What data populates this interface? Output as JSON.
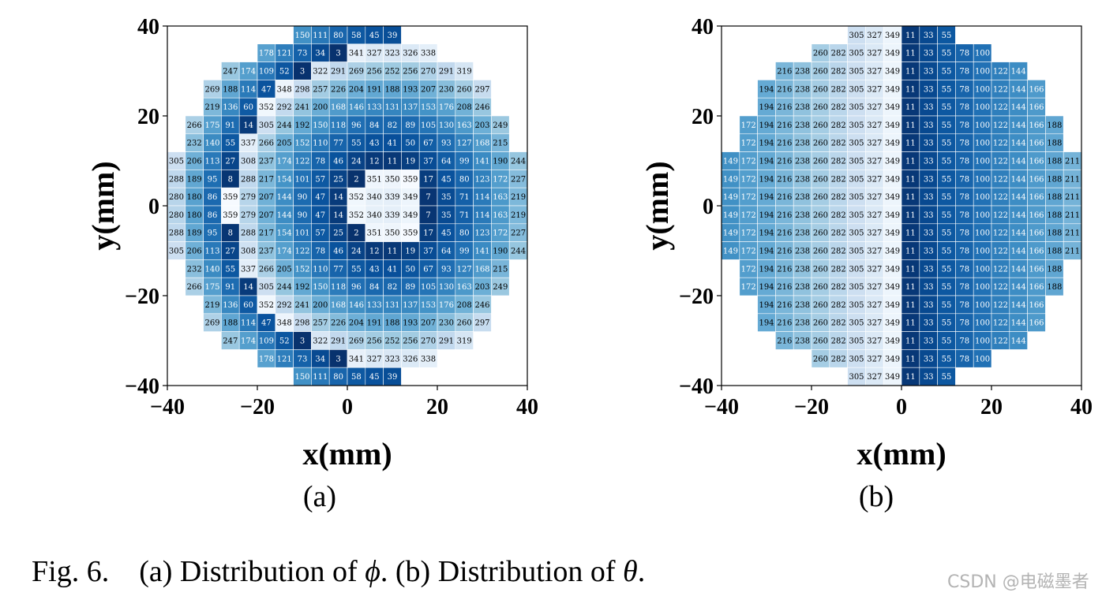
{
  "chart_data": [
    {
      "type": "heatmap",
      "panel": "(a)",
      "xlabel": "x(mm)",
      "ylabel": "y(mm)",
      "xlim": [
        -40,
        40
      ],
      "ylim": [
        -40,
        40
      ],
      "xticks": [
        "−40",
        "−20",
        "0",
        "20",
        "40"
      ],
      "yticks": [
        "40",
        "20",
        "0",
        "−20",
        "−40"
      ],
      "cell_size_mm": 4,
      "cmap": "Blues",
      "color_range": [
        0,
        360
      ],
      "rows": [
        {
          "y": 38,
          "x_start": -12,
          "values": [
            150,
            111,
            80,
            58,
            45,
            39
          ]
        },
        {
          "y": 34,
          "x_start": -20,
          "values": [
            178,
            121,
            73,
            34,
            3,
            341,
            327,
            323,
            326,
            338
          ]
        },
        {
          "y": 30,
          "x_start": -28,
          "values": [
            247,
            174,
            109,
            52,
            3,
            322,
            291,
            269,
            256,
            252,
            256,
            270,
            291,
            319
          ]
        },
        {
          "y": 26,
          "x_start": -32,
          "values": [
            269,
            188,
            114,
            47,
            348,
            298,
            257,
            226,
            204,
            191,
            188,
            193,
            207,
            230,
            260,
            297
          ]
        },
        {
          "y": 22,
          "x_start": -32,
          "values": [
            219,
            136,
            60,
            352,
            292,
            241,
            200,
            168,
            146,
            133,
            131,
            137,
            153,
            176,
            208,
            246
          ]
        },
        {
          "y": 18,
          "x_start": -36,
          "values": [
            266,
            175,
            91,
            14,
            305,
            244,
            192,
            150,
            118,
            96,
            84,
            82,
            89,
            105,
            130,
            163,
            203,
            249
          ]
        },
        {
          "y": 14,
          "x_start": -36,
          "values": [
            232,
            140,
            55,
            337,
            266,
            205,
            152,
            110,
            77,
            55,
            43,
            41,
            50,
            67,
            93,
            127,
            168,
            215
          ]
        },
        {
          "y": 10,
          "x_start": -40,
          "values": [
            305,
            206,
            113,
            27,
            308,
            237,
            174,
            122,
            78,
            46,
            24,
            12,
            11,
            19,
            37,
            64,
            99,
            141,
            190,
            244
          ]
        },
        {
          "y": 6,
          "x_start": -40,
          "values": [
            288,
            189,
            95,
            8,
            288,
            217,
            154,
            101,
            57,
            25,
            2,
            351,
            350,
            359,
            17,
            45,
            80,
            123,
            172,
            227
          ]
        },
        {
          "y": 2,
          "x_start": -40,
          "values": [
            280,
            180,
            86,
            359,
            279,
            207,
            144,
            90,
            47,
            14,
            352,
            340,
            339,
            349,
            7,
            35,
            71,
            114,
            163,
            219
          ]
        },
        {
          "y": -2,
          "x_start": -40,
          "values": [
            280,
            180,
            86,
            359,
            279,
            207,
            144,
            90,
            47,
            14,
            352,
            340,
            339,
            349,
            7,
            35,
            71,
            114,
            163,
            219
          ]
        },
        {
          "y": -6,
          "x_start": -40,
          "values": [
            288,
            189,
            95,
            8,
            288,
            217,
            154,
            101,
            57,
            25,
            2,
            351,
            350,
            359,
            17,
            45,
            80,
            123,
            172,
            227
          ]
        },
        {
          "y": -10,
          "x_start": -40,
          "values": [
            305,
            206,
            113,
            27,
            308,
            237,
            174,
            122,
            78,
            46,
            24,
            12,
            11,
            19,
            37,
            64,
            99,
            141,
            190,
            244
          ]
        },
        {
          "y": -14,
          "x_start": -36,
          "values": [
            232,
            140,
            55,
            337,
            266,
            205,
            152,
            110,
            77,
            55,
            43,
            41,
            50,
            67,
            93,
            127,
            168,
            215
          ]
        },
        {
          "y": -18,
          "x_start": -36,
          "values": [
            266,
            175,
            91,
            14,
            305,
            244,
            192,
            150,
            118,
            96,
            84,
            82,
            89,
            105,
            130,
            163,
            203,
            249
          ]
        },
        {
          "y": -22,
          "x_start": -32,
          "values": [
            219,
            136,
            60,
            352,
            292,
            241,
            200,
            168,
            146,
            133,
            131,
            137,
            153,
            176,
            208,
            246
          ]
        },
        {
          "y": -26,
          "x_start": -32,
          "values": [
            269,
            188,
            114,
            47,
            348,
            298,
            257,
            226,
            204,
            191,
            188,
            193,
            207,
            230,
            260,
            297
          ]
        },
        {
          "y": -30,
          "x_start": -28,
          "values": [
            247,
            174,
            109,
            52,
            3,
            322,
            291,
            269,
            256,
            252,
            256,
            270,
            291,
            319
          ]
        },
        {
          "y": -34,
          "x_start": -20,
          "values": [
            178,
            121,
            73,
            34,
            3,
            341,
            327,
            323,
            326,
            338
          ]
        },
        {
          "y": -38,
          "x_start": -12,
          "values": [
            150,
            111,
            80,
            58,
            45,
            39
          ]
        }
      ]
    },
    {
      "type": "heatmap",
      "panel": "(b)",
      "xlabel": "x(mm)",
      "ylabel": "y(mm)",
      "xlim": [
        -40,
        40
      ],
      "ylim": [
        -40,
        40
      ],
      "xticks": [
        "−40",
        "−20",
        "0",
        "20",
        "40"
      ],
      "yticks": [
        "40",
        "20",
        "0",
        "−20",
        "−40"
      ],
      "cell_size_mm": 4,
      "cmap": "Blues",
      "color_range": [
        0,
        360
      ],
      "rows": [
        {
          "y": 38,
          "x_start": -12,
          "values": [
            305,
            327,
            349,
            11,
            33,
            55
          ]
        },
        {
          "y": 34,
          "x_start": -20,
          "values": [
            260,
            282,
            305,
            327,
            349,
            11,
            33,
            55,
            78,
            100
          ]
        },
        {
          "y": 30,
          "x_start": -28,
          "values": [
            216,
            238,
            260,
            282,
            305,
            327,
            349,
            11,
            33,
            55,
            78,
            100,
            122,
            144
          ]
        },
        {
          "y": 26,
          "x_start": -32,
          "values": [
            194,
            216,
            238,
            260,
            282,
            305,
            327,
            349,
            11,
            33,
            55,
            78,
            100,
            122,
            144,
            166
          ]
        },
        {
          "y": 22,
          "x_start": -32,
          "values": [
            194,
            216,
            238,
            260,
            282,
            305,
            327,
            349,
            11,
            33,
            55,
            78,
            100,
            122,
            144,
            166
          ]
        },
        {
          "y": 18,
          "x_start": -36,
          "values": [
            172,
            194,
            216,
            238,
            260,
            282,
            305,
            327,
            349,
            11,
            33,
            55,
            78,
            100,
            122,
            144,
            166,
            188
          ]
        },
        {
          "y": 14,
          "x_start": -36,
          "values": [
            172,
            194,
            216,
            238,
            260,
            282,
            305,
            327,
            349,
            11,
            33,
            55,
            78,
            100,
            122,
            144,
            166,
            188
          ]
        },
        {
          "y": 10,
          "x_start": -40,
          "values": [
            149,
            172,
            194,
            216,
            238,
            260,
            282,
            305,
            327,
            349,
            11,
            33,
            55,
            78,
            100,
            122,
            144,
            166,
            188,
            211
          ]
        },
        {
          "y": 6,
          "x_start": -40,
          "values": [
            149,
            172,
            194,
            216,
            238,
            260,
            282,
            305,
            327,
            349,
            11,
            33,
            55,
            78,
            100,
            122,
            144,
            166,
            188,
            211
          ]
        },
        {
          "y": 2,
          "x_start": -40,
          "values": [
            149,
            172,
            194,
            216,
            238,
            260,
            282,
            305,
            327,
            349,
            11,
            33,
            55,
            78,
            100,
            122,
            144,
            166,
            188,
            211
          ]
        },
        {
          "y": -2,
          "x_start": -40,
          "values": [
            149,
            172,
            194,
            216,
            238,
            260,
            282,
            305,
            327,
            349,
            11,
            33,
            55,
            78,
            100,
            122,
            144,
            166,
            188,
            211
          ]
        },
        {
          "y": -6,
          "x_start": -40,
          "values": [
            149,
            172,
            194,
            216,
            238,
            260,
            282,
            305,
            327,
            349,
            11,
            33,
            55,
            78,
            100,
            122,
            144,
            166,
            188,
            211
          ]
        },
        {
          "y": -10,
          "x_start": -40,
          "values": [
            149,
            172,
            194,
            216,
            238,
            260,
            282,
            305,
            327,
            349,
            11,
            33,
            55,
            78,
            100,
            122,
            144,
            166,
            188,
            211
          ]
        },
        {
          "y": -14,
          "x_start": -36,
          "values": [
            172,
            194,
            216,
            238,
            260,
            282,
            305,
            327,
            349,
            11,
            33,
            55,
            78,
            100,
            122,
            144,
            166,
            188
          ]
        },
        {
          "y": -18,
          "x_start": -36,
          "values": [
            172,
            194,
            216,
            238,
            260,
            282,
            305,
            327,
            349,
            11,
            33,
            55,
            78,
            100,
            122,
            144,
            166,
            188
          ]
        },
        {
          "y": -22,
          "x_start": -32,
          "values": [
            194,
            216,
            238,
            260,
            282,
            305,
            327,
            349,
            11,
            33,
            55,
            78,
            100,
            122,
            144,
            166
          ]
        },
        {
          "y": -26,
          "x_start": -32,
          "values": [
            194,
            216,
            238,
            260,
            282,
            305,
            327,
            349,
            11,
            33,
            55,
            78,
            100,
            122,
            144,
            166
          ]
        },
        {
          "y": -30,
          "x_start": -28,
          "values": [
            216,
            238,
            260,
            282,
            305,
            327,
            349,
            11,
            33,
            55,
            78,
            100,
            122,
            144
          ]
        },
        {
          "y": -34,
          "x_start": -20,
          "values": [
            260,
            282,
            305,
            327,
            349,
            11,
            33,
            55,
            78,
            100
          ]
        },
        {
          "y": -38,
          "x_start": -12,
          "values": [
            305,
            327,
            349,
            11,
            33,
            55
          ]
        }
      ]
    }
  ],
  "caption": {
    "prefix": "Fig. 6.",
    "part_a": "(a) Distribution of ",
    "symbol_a": "ϕ",
    "part_b": ". (b) Distribution of ",
    "symbol_b": "θ",
    "suffix": "."
  },
  "watermark": "CSDN @电磁墨者",
  "colors": {
    "cmap_low": "#f7fbff",
    "cmap_mid": "#6baed6",
    "cmap_high": "#08306b",
    "axis": "#000000"
  }
}
